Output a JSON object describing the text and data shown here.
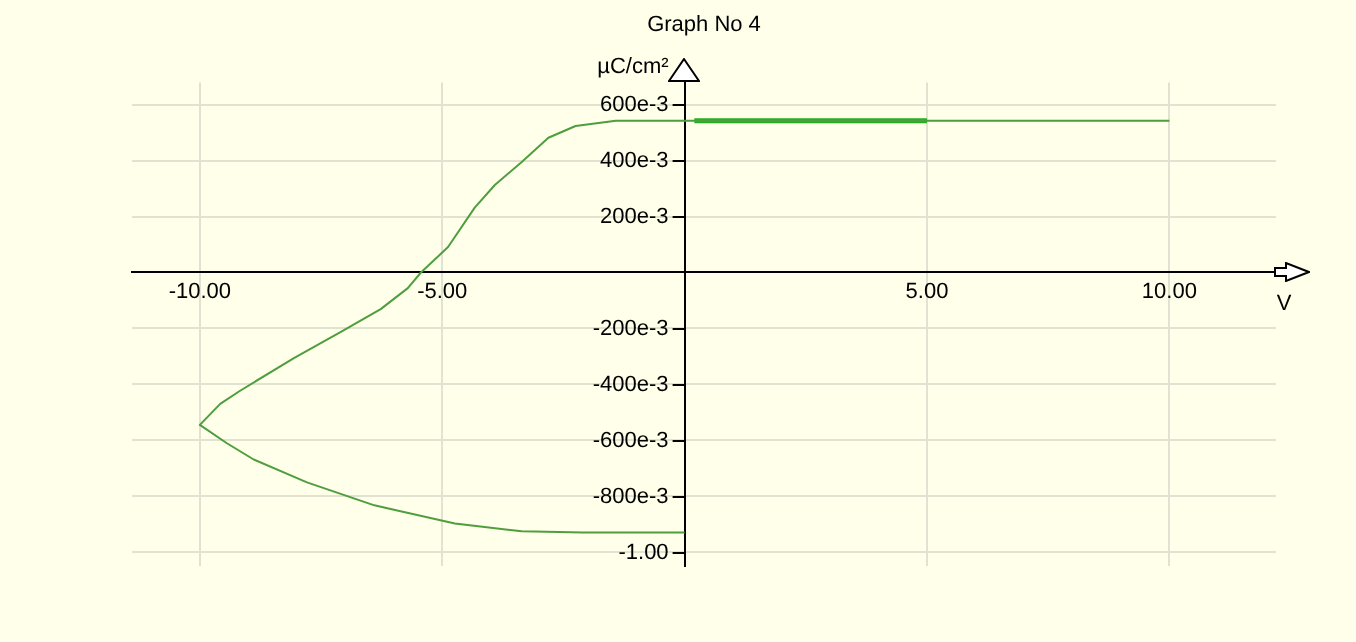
{
  "chart_data": {
    "type": "line",
    "title": "Graph No 4",
    "xlabel": "V",
    "ylabel": "µC/cm²",
    "series": [
      {
        "color": "#4e9e3e",
        "x": [
          0,
          -2.1,
          -3.36,
          -4.74,
          -6.4,
          -7.79,
          -8.89,
          -9.45,
          -10,
          -9.58,
          -9.17,
          -8.06,
          -7.1,
          -6.27,
          -5.71,
          -5.44,
          -4.88,
          -4.33,
          -3.91,
          -3.36,
          -2.81,
          -2.25,
          -1.42,
          0,
          10
        ],
        "values": [
          -0.93,
          -0.93,
          -0.926,
          -0.898,
          -0.833,
          -0.751,
          -0.669,
          -0.61,
          -0.545,
          -0.47,
          -0.423,
          -0.306,
          -0.213,
          -0.131,
          -0.056,
          0,
          0.091,
          0.232,
          0.314,
          0.395,
          0.482,
          0.524,
          0.543,
          0.543,
          0.543
        ]
      },
      {
        "color": "#22b022",
        "x": [
          0.2,
          5
        ],
        "values": [
          0.543,
          0.543
        ]
      }
    ],
    "xlim": [
      -11.4,
      12.2
    ],
    "ylim": [
      -1.05,
      0.68
    ],
    "xticks": [
      {
        "value": -10,
        "label": "-10.00"
      },
      {
        "value": -5,
        "label": "-5.00"
      },
      {
        "value": 5,
        "label": "5.00"
      },
      {
        "value": 10,
        "label": "10.00"
      }
    ],
    "yticks": [
      {
        "value": 0.6,
        "label": "600e-3"
      },
      {
        "value": 0.4,
        "label": "400e-3"
      },
      {
        "value": 0.2,
        "label": "200e-3"
      },
      {
        "value": -0.2,
        "label": "-200e-3"
      },
      {
        "value": -0.4,
        "label": "-400e-3"
      },
      {
        "value": -0.6,
        "label": "-600e-3"
      },
      {
        "value": -0.8,
        "label": "-800e-3"
      },
      {
        "value": -1,
        "label": "-1.00"
      }
    ],
    "grid": true,
    "legend": false,
    "marker": "none",
    "line_style": "solid"
  }
}
